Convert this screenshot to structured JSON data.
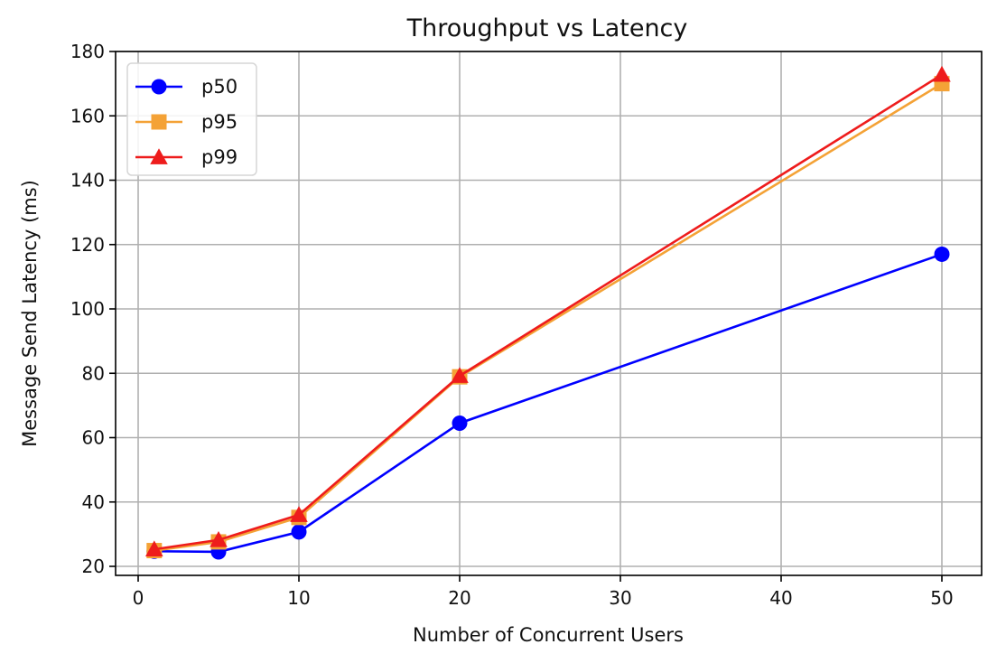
{
  "chart_data": {
    "type": "line",
    "title": "Throughput vs Latency",
    "xlabel": "Number of Concurrent Users",
    "ylabel": "Message Send Latency (ms)",
    "x": [
      1,
      5,
      10,
      20,
      50
    ],
    "xlim": [
      -2.1,
      52.8
    ],
    "ylim": [
      16.9,
      180
    ],
    "xticks": [
      0,
      10,
      20,
      30,
      40,
      50
    ],
    "yticks": [
      20,
      40,
      60,
      80,
      100,
      120,
      140,
      160,
      180
    ],
    "grid": true,
    "legend_position": "upper left",
    "series": [
      {
        "name": "p50",
        "color": "#0000ff",
        "marker": "circle",
        "values": [
          24.7,
          24.5,
          30.7,
          64.5,
          117.0
        ]
      },
      {
        "name": "p95",
        "color": "#f4a236",
        "marker": "square",
        "values": [
          24.9,
          27.6,
          35.2,
          78.9,
          170.0
        ]
      },
      {
        "name": "p99",
        "color": "#ee1c1c",
        "marker": "triangle",
        "values": [
          25.3,
          28.2,
          36.0,
          79.2,
          172.8
        ]
      }
    ]
  }
}
